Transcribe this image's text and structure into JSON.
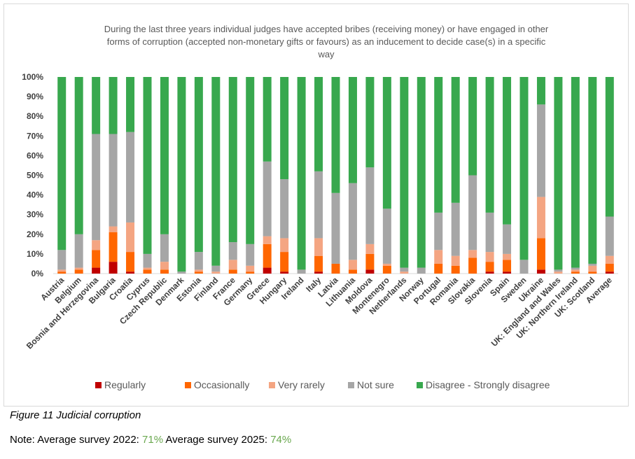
{
  "chart_data": {
    "type": "bar",
    "stacked": true,
    "title_lines": [
      "During the last three years individual judges have accepted bribes (receiving money) or have engaged in other",
      "forms of corruption (accepted non-monetary gifts or favours) as an inducement to decide case(s) in a specific",
      "way"
    ],
    "y_ticks": [
      "0%",
      "10%",
      "20%",
      "30%",
      "40%",
      "50%",
      "60%",
      "70%",
      "80%",
      "90%",
      "100%"
    ],
    "ylim": [
      0,
      100
    ],
    "categories": [
      "Austria",
      "Belgium",
      "Bosnia and Herzegovina",
      "Bulgaria",
      "Croatia",
      "Cyprus",
      "Czech Republic",
      "Denmark",
      "Estonia",
      "Finland",
      "France",
      "Germany",
      "Greece",
      "Hungary",
      "Ireland",
      "Italy",
      "Latvia",
      "Lithuania",
      "Moldova",
      "Montenegro",
      "Netherlands",
      "Norway",
      "Portugal",
      "Romania",
      "Slovakia",
      "Slovenia",
      "Spain",
      "Sweden",
      "Ukraine",
      "UK: England and Wales",
      "UK: Northern Ireland",
      "UK: Scotland",
      "Average"
    ],
    "series": [
      {
        "name": "Regularly",
        "color": "#c00000",
        "values": [
          0,
          0,
          3,
          6,
          1,
          0,
          0,
          0,
          0,
          0,
          0,
          0,
          3,
          1,
          0,
          1,
          0,
          0,
          2,
          0,
          0,
          0,
          0,
          0,
          0,
          1,
          1,
          0,
          2,
          0,
          0,
          0,
          1
        ]
      },
      {
        "name": "Occasionally",
        "color": "#ff6600",
        "values": [
          1,
          2,
          9,
          15,
          10,
          2,
          2,
          0,
          1,
          0,
          2,
          1,
          12,
          10,
          0,
          8,
          5,
          2,
          8,
          4,
          0,
          0,
          5,
          4,
          8,
          5,
          6,
          0,
          16,
          0,
          1,
          1,
          4
        ]
      },
      {
        "name": "Very rarely",
        "color": "#f4a582",
        "values": [
          1,
          1,
          5,
          3,
          15,
          1,
          4,
          0,
          1,
          1,
          5,
          3,
          4,
          7,
          0,
          9,
          0,
          5,
          5,
          1,
          1,
          0,
          7,
          5,
          4,
          5,
          3,
          0,
          21,
          1,
          1,
          3,
          4
        ]
      },
      {
        "name": "Not sure",
        "color": "#a6a6a6",
        "values": [
          10,
          17,
          54,
          47,
          46,
          7,
          14,
          1,
          9,
          3,
          9,
          11,
          38,
          30,
          2,
          34,
          36,
          39,
          39,
          28,
          2,
          3,
          19,
          27,
          38,
          20,
          15,
          7,
          47,
          1,
          1,
          1,
          20
        ]
      },
      {
        "name": "Disagree - Strongly disagree",
        "color": "#38a84e",
        "values": [
          88,
          80,
          29,
          29,
          28,
          90,
          80,
          99,
          89,
          96,
          84,
          85,
          43,
          52,
          98,
          48,
          59,
          54,
          46,
          67,
          97,
          97,
          69,
          64,
          50,
          69,
          75,
          93,
          14,
          98,
          97,
          95,
          71
        ]
      }
    ]
  },
  "caption": "Figure 11  Judicial corruption",
  "note": {
    "prefix": "Note: Average survey 2022: ",
    "value_2022": "71%",
    "middle": " Average survey 2025: ",
    "value_2025": "74%"
  }
}
